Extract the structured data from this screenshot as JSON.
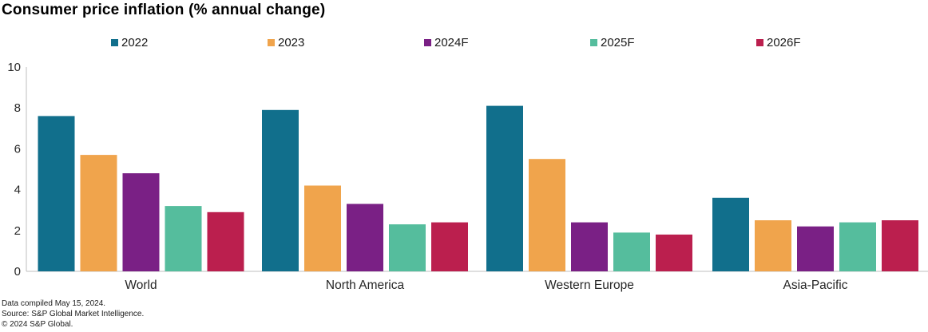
{
  "chart_data": {
    "type": "bar",
    "title": "Consumer price inflation (% annual change)",
    "categories": [
      "World",
      "North America",
      "Western Europe",
      "Asia-Pacific"
    ],
    "series": [
      {
        "name": "2022",
        "color": "#116F8C",
        "values": [
          7.6,
          7.9,
          8.1,
          3.6
        ]
      },
      {
        "name": "2023",
        "color": "#F0A44C",
        "values": [
          5.7,
          4.2,
          5.5,
          2.5
        ]
      },
      {
        "name": "2024F",
        "color": "#7A2085",
        "values": [
          4.8,
          3.3,
          2.4,
          2.2
        ]
      },
      {
        "name": "2025F",
        "color": "#55BD9D",
        "values": [
          3.2,
          2.3,
          1.9,
          2.4
        ]
      },
      {
        "name": "2026F",
        "color": "#BB1F4E",
        "values": [
          2.9,
          2.4,
          1.8,
          2.5
        ]
      }
    ],
    "xlabel": "",
    "ylabel": "",
    "ylim": [
      0,
      10
    ],
    "yticks": [
      0,
      2,
      4,
      6,
      8,
      10
    ],
    "grid": false,
    "legend_position": "top",
    "axis_color": "#BFBFBF",
    "tick_label_color": "#262626"
  },
  "footer": {
    "line1": "Data compiled May 15, 2024.",
    "line2": "Source: S&P Global Market Intelligence.",
    "line3": "© 2024 S&P Global."
  }
}
